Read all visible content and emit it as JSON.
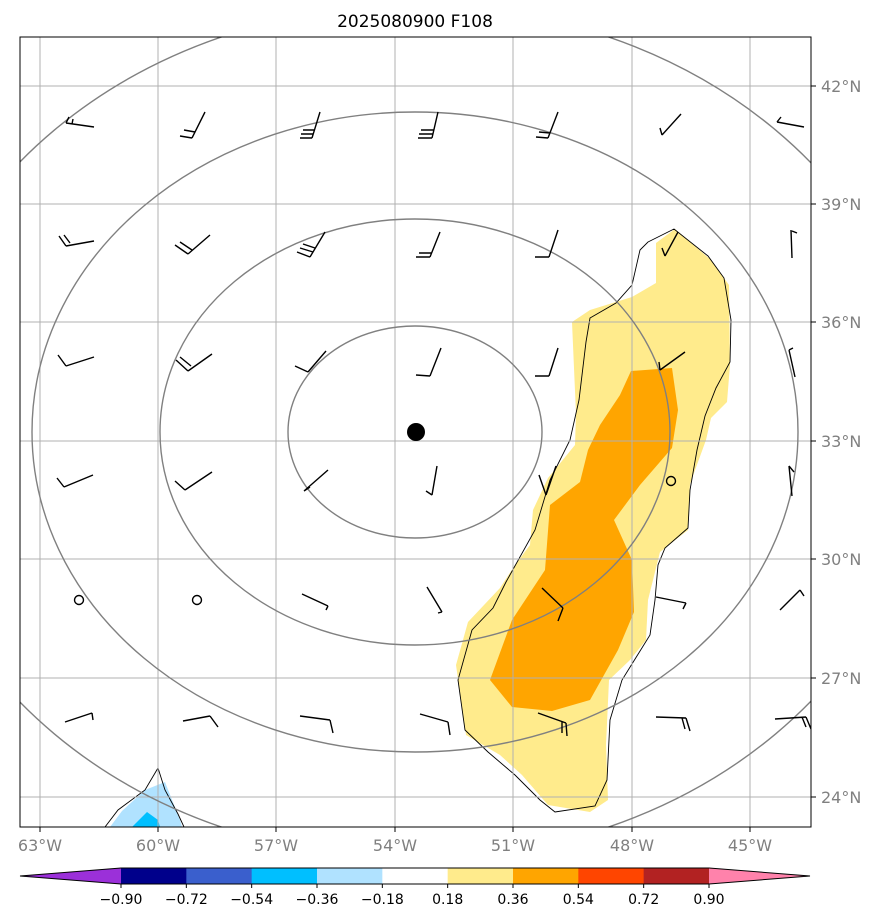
{
  "title": "2025080900 F108",
  "chart_data": {
    "type": "map",
    "title": "2025080900 F108",
    "lon_labels": [
      "63°W",
      "60°W",
      "57°W",
      "54°W",
      "51°W",
      "48°W",
      "45°W"
    ],
    "lat_labels": [
      "42°N",
      "39°N",
      "36°N",
      "33°N",
      "30°N",
      "27°N",
      "24°N"
    ],
    "center_marker": {
      "lon": -53.5,
      "lat": 33.2
    },
    "colorbar": {
      "ticks": [
        "−0.90",
        "−0.72",
        "−0.54",
        "−0.36",
        "−0.18",
        "0.18",
        "0.36",
        "0.54",
        "0.72",
        "0.90"
      ],
      "colors": [
        "#9b30d9",
        "#00008b",
        "#3a5fcd",
        "#00bfff",
        "#b0e2ff",
        "#ffffff",
        "#ffeb8c",
        "#ffa500",
        "#ff4500",
        "#b22222",
        "#ff82ab"
      ],
      "extend": "both"
    }
  }
}
